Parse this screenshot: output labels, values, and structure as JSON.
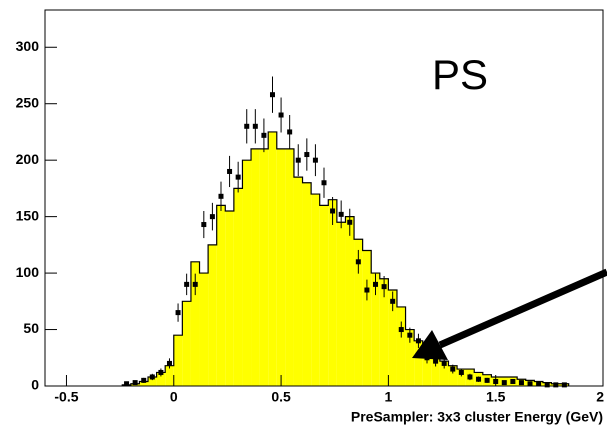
{
  "chart_data": {
    "type": "histogram",
    "x_label": "PreSampler: 3x3 cluster Energy (GeV)",
    "annotation": "PS",
    "xlim": [
      -0.6,
      2
    ],
    "ylim": [
      0,
      333
    ],
    "xticks": [
      -0.5,
      0,
      0.5,
      1,
      1.5,
      2
    ],
    "yticks": [
      0,
      50,
      100,
      150,
      200,
      250,
      300
    ],
    "bins": [
      -0.24,
      -0.2,
      -0.16,
      -0.12,
      -0.08,
      -0.04,
      0,
      0.04,
      0.08,
      0.12,
      0.16,
      0.2,
      0.24,
      0.28,
      0.32,
      0.36,
      0.4,
      0.44,
      0.48,
      0.52,
      0.56,
      0.6,
      0.64,
      0.68,
      0.72,
      0.76,
      0.8,
      0.84,
      0.88,
      0.92,
      0.96,
      1,
      1.04,
      1.08,
      1.12,
      1.16,
      1.2,
      1.24,
      1.28,
      1.32,
      1.36,
      1.4,
      1.44,
      1.48,
      1.52,
      1.56,
      1.6,
      1.64,
      1.68,
      1.72,
      1.76,
      1.8,
      1.84
    ],
    "counts": [
      1,
      2,
      4,
      8,
      12,
      18,
      45,
      75,
      110,
      100,
      125,
      160,
      155,
      175,
      200,
      210,
      210,
      225,
      210,
      210,
      185,
      180,
      170,
      160,
      165,
      145,
      150,
      130,
      120,
      100,
      95,
      85,
      70,
      50,
      40,
      32,
      25,
      22,
      18,
      15,
      15,
      12,
      10,
      8,
      8,
      8,
      6,
      5,
      4,
      3,
      2,
      2
    ],
    "color": "#ffff00",
    "points": {
      "x": [
        -0.22,
        -0.18,
        -0.14,
        -0.1,
        -0.06,
        -0.02,
        0.02,
        0.06,
        0.1,
        0.14,
        0.18,
        0.22,
        0.26,
        0.3,
        0.34,
        0.38,
        0.42,
        0.46,
        0.5,
        0.54,
        0.58,
        0.62,
        0.66,
        0.7,
        0.74,
        0.78,
        0.82,
        0.86,
        0.9,
        0.94,
        0.98,
        1.02,
        1.06,
        1.1,
        1.14,
        1.18,
        1.22,
        1.26,
        1.3,
        1.34,
        1.38,
        1.42,
        1.46,
        1.5,
        1.54,
        1.58,
        1.62,
        1.66,
        1.7,
        1.74,
        1.78,
        1.82
      ],
      "values": [
        2,
        3,
        5,
        8,
        12,
        20,
        65,
        90,
        90,
        143,
        150,
        168,
        190,
        185,
        230,
        230,
        222,
        258,
        240,
        225,
        200,
        205,
        200,
        180,
        155,
        152,
        145,
        110,
        85,
        90,
        88,
        75,
        50,
        45,
        40,
        25,
        22,
        20,
        15,
        12,
        8,
        6,
        5,
        4,
        3,
        4,
        3,
        2,
        2,
        1,
        1,
        1
      ],
      "errors": [
        1.4,
        1.7,
        2.2,
        2.8,
        3.5,
        4.5,
        8.1,
        9.5,
        9.5,
        12,
        12.2,
        13,
        13.8,
        13.6,
        15.2,
        15.2,
        14.9,
        16.1,
        15.5,
        15,
        14.1,
        14.3,
        14.1,
        13.4,
        12.4,
        12.3,
        12,
        10.5,
        9.2,
        9.5,
        9.4,
        8.7,
        7.1,
        6.7,
        6.3,
        5,
        4.7,
        4.5,
        3.9,
        3.5,
        2.8,
        2.4,
        2.2,
        2,
        1.7,
        2,
        1.7,
        1.4,
        1.4,
        1,
        1,
        1
      ],
      "color": "#000000"
    }
  }
}
